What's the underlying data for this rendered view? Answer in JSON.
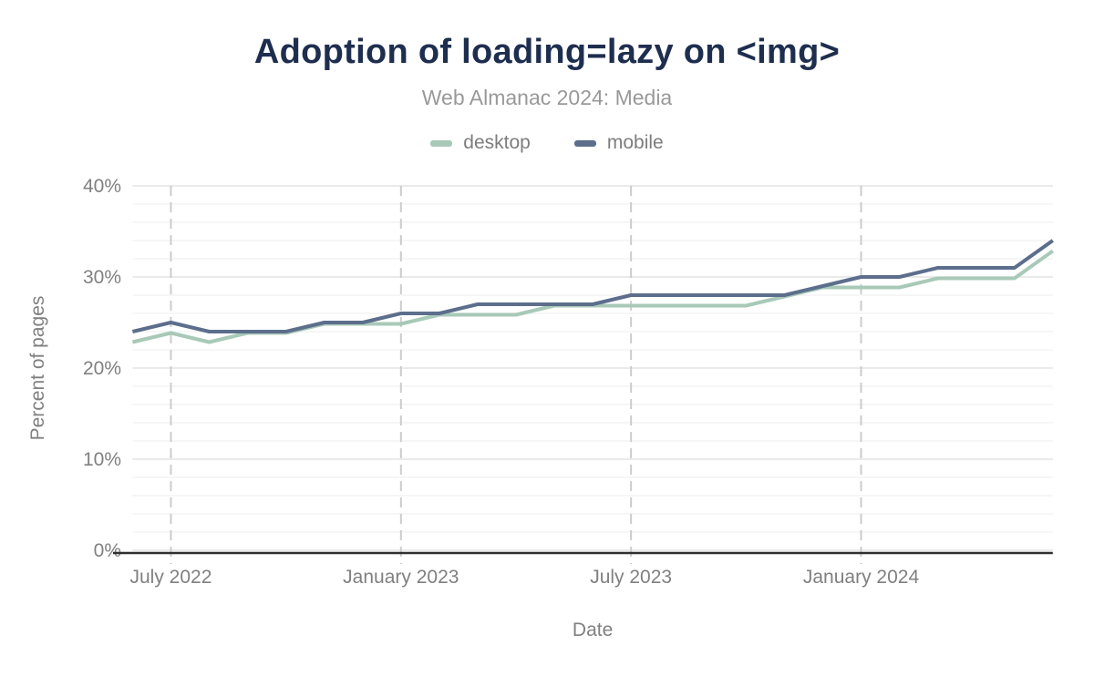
{
  "chart_data": {
    "type": "line",
    "title": "Adoption of loading=lazy on <img>",
    "subtitle": "Web Almanac 2024: Media",
    "xlabel": "Date",
    "ylabel": "Percent of pages",
    "ylim": [
      0,
      40
    ],
    "y_tick_step": 10,
    "y_minor_step": 2,
    "y_tick_suffix": "%",
    "grid": true,
    "legend_position": "top",
    "x": [
      "2022-06",
      "2022-07",
      "2022-08",
      "2022-09",
      "2022-10",
      "2022-11",
      "2022-12",
      "2023-01",
      "2023-02",
      "2023-03",
      "2023-04",
      "2023-05",
      "2023-06",
      "2023-07",
      "2023-08",
      "2023-09",
      "2023-10",
      "2023-11",
      "2023-12",
      "2024-01",
      "2024-02",
      "2024-03",
      "2024-04",
      "2024-05",
      "2024-06"
    ],
    "x_ticks": [
      {
        "index": 1,
        "label": "July 2022"
      },
      {
        "index": 7,
        "label": "January 2023"
      },
      {
        "index": 13,
        "label": "July 2023"
      },
      {
        "index": 19,
        "label": "January 2024"
      }
    ],
    "series": [
      {
        "name": "desktop",
        "color": "#a8c9b8",
        "values": [
          23,
          24,
          23,
          24,
          24,
          25,
          25,
          25,
          26,
          26,
          26,
          27,
          27,
          27,
          27,
          27,
          27,
          28,
          29,
          29,
          29,
          30,
          30,
          30,
          33
        ]
      },
      {
        "name": "mobile",
        "color": "#5c6e8c",
        "values": [
          24,
          25,
          24,
          24,
          24,
          25,
          25,
          26,
          26,
          27,
          27,
          27,
          27,
          28,
          28,
          28,
          28,
          28,
          29,
          30,
          30,
          31,
          31,
          31,
          34
        ]
      }
    ]
  },
  "colors": {
    "background": "#ffffff",
    "title": "#1e2e4f",
    "subtitle": "#999999",
    "legend_text": "#7d7d7d",
    "axis_text": "#808080",
    "grid_major": "#e3e3e3",
    "grid_minor": "#f4f4f4",
    "grid_vertical_dashed": "#cccccc",
    "axis_line": "#2f2f2f"
  }
}
